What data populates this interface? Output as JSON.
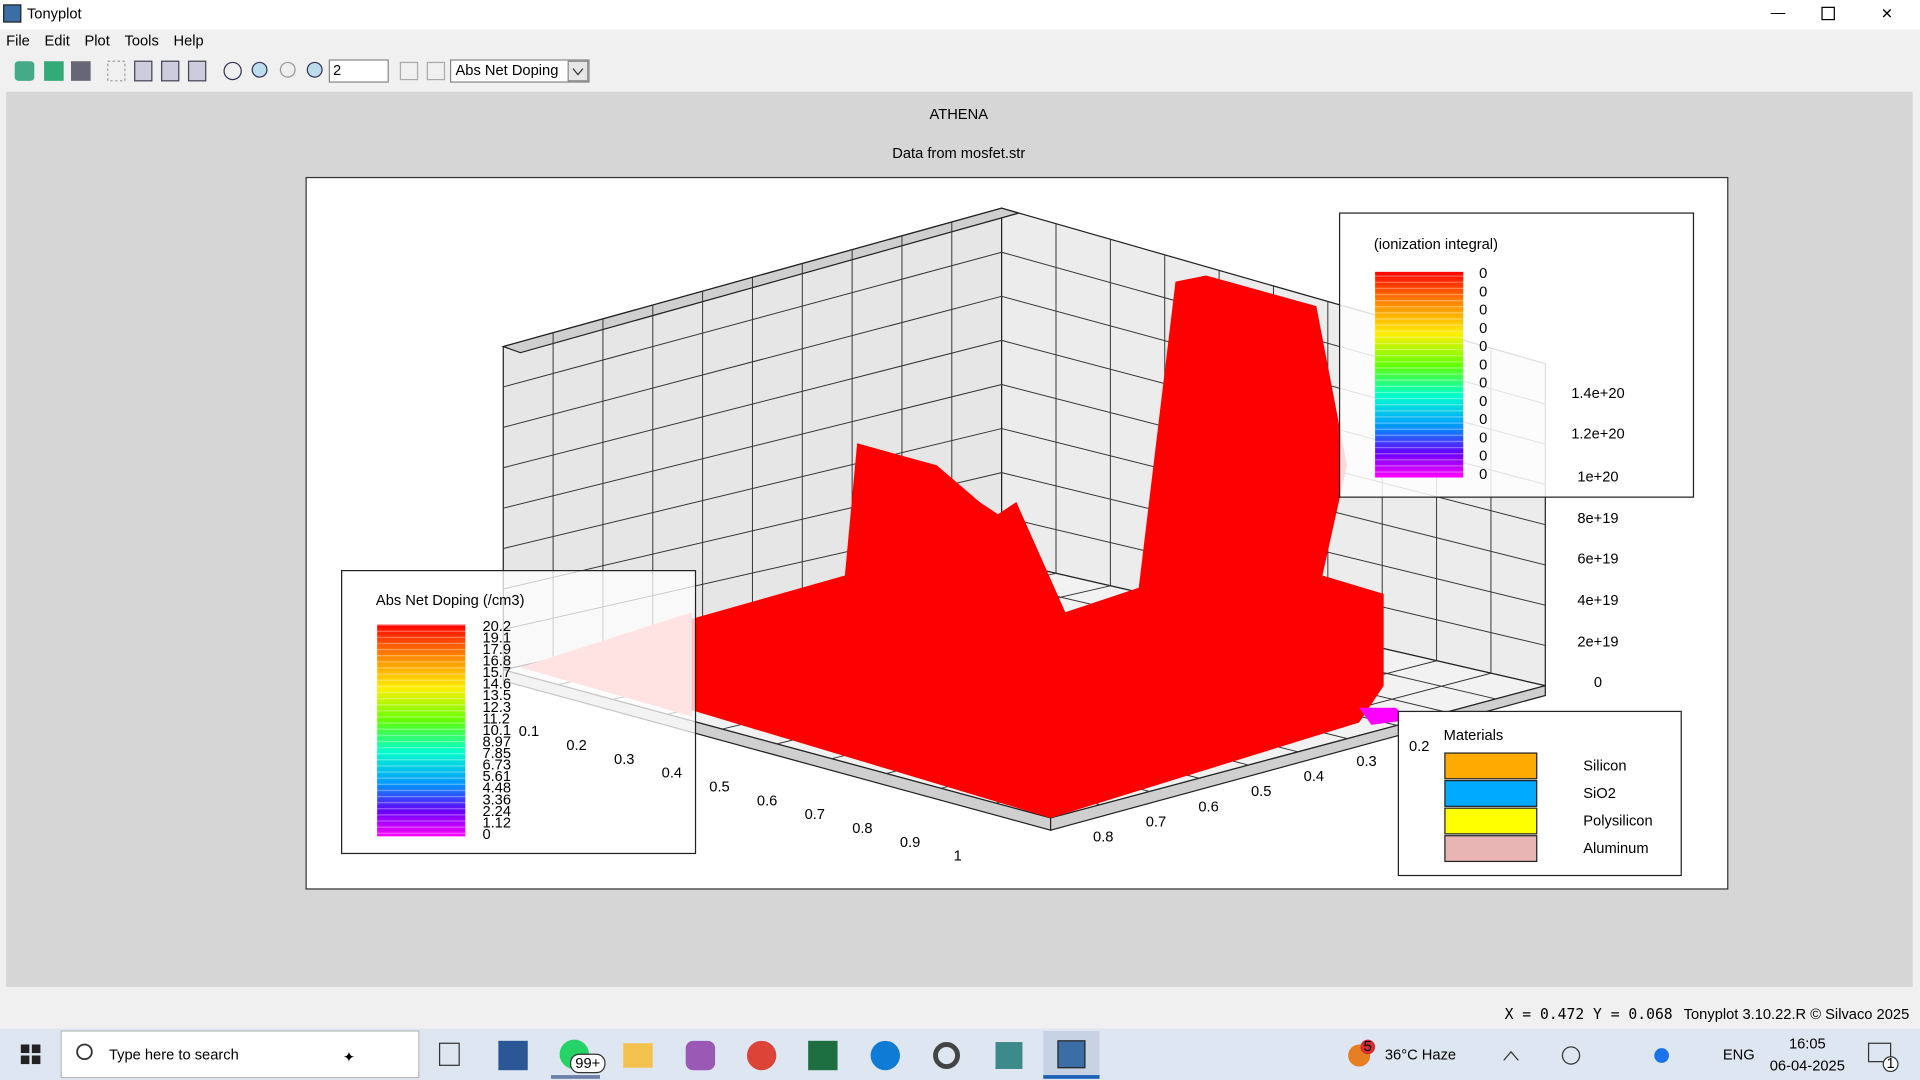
{
  "window": {
    "title": "Tonyplot"
  },
  "menu": [
    "File",
    "Edit",
    "Plot",
    "Tools",
    "Help"
  ],
  "toolbar": {
    "zoom_value": "2",
    "quantity": "Abs Net Doping"
  },
  "plot": {
    "title": "ATHENA",
    "subtitle": "Data from mosfet.str",
    "z_ticks": [
      "1.4e+20",
      "1.2e+20",
      "1e+20",
      "8e+19",
      "6e+19",
      "4e+19",
      "2e+19",
      "0"
    ],
    "x_ticks": [
      "0.1",
      "0.2",
      "0.3",
      "0.4",
      "0.5",
      "0.6",
      "0.7",
      "0.8",
      "0.9",
      "1"
    ],
    "y_ticks": [
      "0.8",
      "0.7",
      "0.6",
      "0.5",
      "0.4",
      "0.3",
      "0.2"
    ],
    "doping_legend": {
      "title": "Abs Net Doping (/cm3)",
      "labels": [
        "20.2",
        "19.1",
        "17.9",
        "16.8",
        "15.7",
        "14.6",
        "13.5",
        "12.3",
        "11.2",
        "10.1",
        "8.97",
        "7.85",
        "6.73",
        "5.61",
        "4.48",
        "3.36",
        "2.24",
        "1.12",
        "0"
      ]
    },
    "ionization_legend": {
      "title": "(ionization integral)",
      "labels": [
        "0",
        "0",
        "0",
        "0",
        "0",
        "0",
        "0",
        "0",
        "0",
        "0",
        "0",
        "0"
      ]
    },
    "materials": {
      "title": "Materials",
      "items": [
        {
          "name": "Silicon",
          "color": "#ffaa00"
        },
        {
          "name": "SiO2",
          "color": "#00aaff"
        },
        {
          "name": "Polysilicon",
          "color": "#ffff00"
        },
        {
          "name": "Aluminum",
          "color": "#e8b4b4"
        }
      ]
    }
  },
  "status": {
    "coords": "X = 0.472 Y = 0.068",
    "version": "Tonyplot 3.10.22.R © Silvaco 2025"
  },
  "taskbar": {
    "search": "Type here to search",
    "badge": "99+",
    "weather_badge": "5",
    "weather": "36°C  Haze",
    "lang": "ENG",
    "time": "16:05",
    "date": "06-04-2025",
    "notification": "1"
  }
}
